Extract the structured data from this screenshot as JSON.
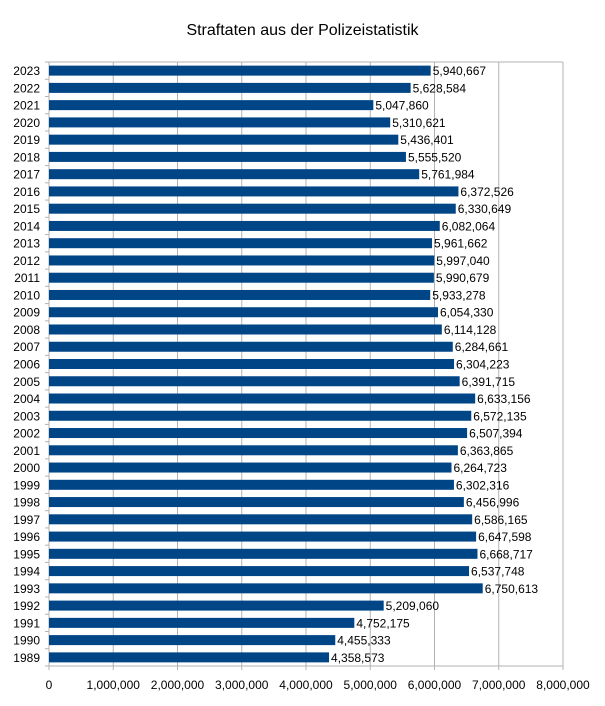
{
  "chart_data": {
    "type": "bar",
    "orientation": "horizontal",
    "title": "Straftaten aus der Polizeistatistik",
    "xlabel": "",
    "ylabel": "",
    "xlim": [
      0,
      8000000
    ],
    "x_ticks": [
      "0",
      "1,000,000",
      "2,000,000",
      "3,000,000",
      "4,000,000",
      "5,000,000",
      "6,000,000",
      "7,000,000",
      "8,000,000"
    ],
    "grid": true,
    "legend": "none",
    "bar_color": "#004586",
    "categories": [
      "2023",
      "2022",
      "2021",
      "2020",
      "2019",
      "2018",
      "2017",
      "2016",
      "2015",
      "2014",
      "2013",
      "2012",
      "2011",
      "2010",
      "2009",
      "2008",
      "2007",
      "2006",
      "2005",
      "2004",
      "2003",
      "2002",
      "2001",
      "2000",
      "1999",
      "1998",
      "1997",
      "1996",
      "1995",
      "1994",
      "1993",
      "1992",
      "1991",
      "1990",
      "1989"
    ],
    "values": [
      5940667,
      5628584,
      5047860,
      5310621,
      5436401,
      5555520,
      5761984,
      6372526,
      6330649,
      6082064,
      5961662,
      5997040,
      5990679,
      5933278,
      6054330,
      6114128,
      6284661,
      6304223,
      6391715,
      6633156,
      6572135,
      6507394,
      6363865,
      6264723,
      6302316,
      6456996,
      6586165,
      6647598,
      6668717,
      6537748,
      6750613,
      5209060,
      4752175,
      4455333,
      4358573
    ],
    "data_labels": [
      "5,940,667",
      "5,628,584",
      "5,047,860",
      "5,310,621",
      "5,436,401",
      "5,555,520",
      "5,761,984",
      "6,372,526",
      "6,330,649",
      "6,082,064",
      "5,961,662",
      "5,997,040",
      "5,990,679",
      "5,933,278",
      "6,054,330",
      "6,114,128",
      "6,284,661",
      "6,304,223",
      "6,391,715",
      "6,633,156",
      "6,572,135",
      "6,507,394",
      "6,363,865",
      "6,264,723",
      "6,302,316",
      "6,456,996",
      "6,586,165",
      "6,647,598",
      "6,668,717",
      "6,537,748",
      "6,750,613",
      "5,209,060",
      "4,752,175",
      "4,455,333",
      "4,358,573"
    ]
  }
}
